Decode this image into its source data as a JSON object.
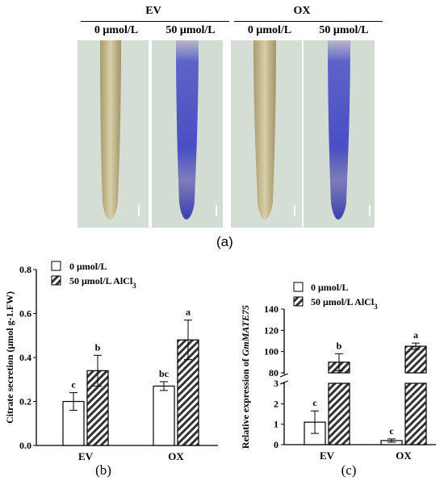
{
  "panel_a": {
    "group_labels": [
      "EV",
      "OX"
    ],
    "treatment_labels": [
      "0 μmol/L",
      "50 μmol/L",
      "0 μmol/L",
      "50 μmol/L"
    ],
    "photos": [
      {
        "stain": "none"
      },
      {
        "stain": "blue"
      },
      {
        "stain": "none"
      },
      {
        "stain": "blue"
      }
    ],
    "panel_label": "(a)"
  },
  "panel_b": {
    "panel_label": "(b)"
  },
  "panel_c": {
    "panel_label": "(c)"
  },
  "colors": {
    "bar_white": "#ffffff",
    "bar_hatch": "#333333",
    "stain_blue": "#4a4fc4",
    "photo_bg": "#d3ddd3"
  },
  "chart_data": [
    {
      "type": "bar",
      "ylabel": "Citrate secretion (μmol g-1.FW)",
      "categories": [
        "EV",
        "OX"
      ],
      "ylim": [
        0,
        0.8
      ],
      "yticks": [
        "0.0",
        "0.2",
        "0.4",
        "0.6",
        "0.8"
      ],
      "legend": [
        "0  μmol/L",
        "50  μmol/L  AlCl3"
      ],
      "series": [
        {
          "name": "0  μmol/L",
          "values": [
            0.2,
            0.27
          ],
          "errors": [
            0.04,
            0.02
          ],
          "letters": [
            "c",
            "bc"
          ],
          "fill": "white"
        },
        {
          "name": "50  μmol/L  AlCl3",
          "values": [
            0.34,
            0.48
          ],
          "errors": [
            0.07,
            0.09
          ],
          "letters": [
            "b",
            "a"
          ],
          "fill": "hatch"
        }
      ]
    },
    {
      "type": "bar",
      "ylabel_prefix": "Relative expression of ",
      "ylabel_gene": "GmMATE75",
      "categories": [
        "EV",
        "OX"
      ],
      "axis_break": [
        3,
        80
      ],
      "lower_yticks": [
        "0",
        "1",
        "2",
        "3"
      ],
      "upper_yticks": [
        "80",
        "100",
        "120",
        "140"
      ],
      "legend": [
        "0  μmol/L",
        "50  μmol/L  AlCl3"
      ],
      "series": [
        {
          "name": "0  μmol/L",
          "values": [
            1.1,
            0.2
          ],
          "errors": [
            0.55,
            0.08
          ],
          "letters": [
            "c",
            "c"
          ],
          "fill": "white"
        },
        {
          "name": "50  μmol/L  AlCl3",
          "values": [
            90,
            105
          ],
          "errors": [
            8,
            3
          ],
          "letters": [
            "b",
            "a"
          ],
          "fill": "hatch"
        }
      ]
    }
  ]
}
